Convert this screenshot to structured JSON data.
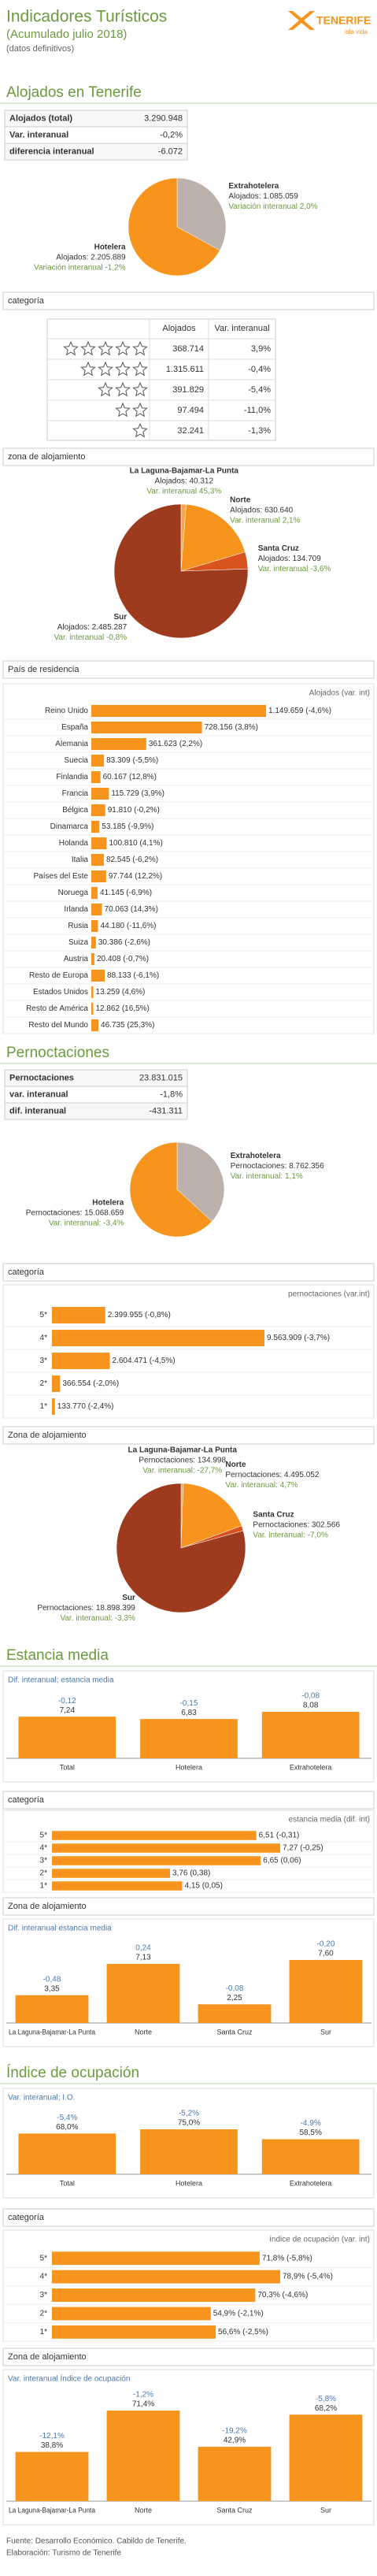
{
  "header": {
    "title": "Indicadores Turísticos",
    "subtitle": "(Acumulado julio 2018)",
    "note": "(datos definitivos)",
    "logo": "TENERIFE",
    "logo_tagline": "isla vida"
  },
  "chart_data": [
    {
      "type": "table",
      "section": "Alojados en Tenerife",
      "rows": [
        [
          "Alojados (total)",
          "3.290.948"
        ],
        [
          "Var. interanual",
          "-0,2%"
        ],
        [
          "diferencia interanual",
          "-6.072"
        ]
      ]
    },
    {
      "type": "pie",
      "categories": [
        "Extrahotelera",
        "Hotelera"
      ],
      "values": [
        1085059,
        2205889
      ],
      "value_labels": [
        "Alojados: 1.085.059",
        "Alojados: 2.205.889"
      ],
      "var_labels": [
        "Variación interanual 2,0%",
        "Variación interanual -1,2%"
      ],
      "colors": [
        "#bcb1ab",
        "#f7941d"
      ]
    },
    {
      "type": "table",
      "title": "categoría",
      "columns": [
        "Alojados",
        "Var. interanual"
      ],
      "stars": [
        5,
        4,
        3,
        2,
        1
      ],
      "rows": [
        [
          "368.714",
          "3,9%"
        ],
        [
          "1.315.611",
          "-0,4%"
        ],
        [
          "391.829",
          "-5,4%"
        ],
        [
          "97.494",
          "-11,0%"
        ],
        [
          "32.241",
          "-1,3%"
        ]
      ]
    },
    {
      "type": "pie",
      "title": "zona de alojamiento",
      "categories": [
        "La Laguna-Bajamar-La Punta",
        "Norte",
        "Santa Cruz",
        "Sur"
      ],
      "values": [
        40312,
        630640,
        134709,
        2485287
      ],
      "value_labels": [
        "Alojados: 40.312",
        "Alojados: 630.640",
        "Alojados: 134.709",
        "Alojados: 2.485.287"
      ],
      "var_labels": [
        "Var. interanual 45,3%",
        "Var. interanual 2,1%",
        "Var. interanual -3,6%",
        "Var. interanual -0,8%"
      ],
      "colors": [
        "#f6a54e",
        "#f7941d",
        "#d9531e",
        "#9e3b1f"
      ]
    },
    {
      "type": "hbar",
      "title": "País de residencia",
      "axis_label": "Alojados (var. int)",
      "color": "#f7941d",
      "categories": [
        "Reino Unido",
        "España",
        "Alemania",
        "Suecia",
        "Finlandia",
        "Francia",
        "Bélgica",
        "Dinamarca",
        "Holanda",
        "Italia",
        "Países del Este",
        "Noruega",
        "Irlanda",
        "Rusia",
        "Suiza",
        "Austria",
        "Resto de Europa",
        "Estados Unidos",
        "Resto de América",
        "Resto del Mundo"
      ],
      "values": [
        1149659,
        728156,
        361623,
        83309,
        60167,
        115729,
        91810,
        53185,
        100810,
        82545,
        97744,
        41145,
        70063,
        44180,
        30386,
        20408,
        88133,
        13259,
        12862,
        46735
      ],
      "value_labels": [
        "1.149.659 (-4,6%)",
        "728.156 (3,8%)",
        "361.623 (2,2%)",
        "83.309 (-5,5%)",
        "60.167 (12,8%)",
        "115.729 (3,9%)",
        "91.810 (-0,2%)",
        "53.185 (-9,9%)",
        "100.810 (4,1%)",
        "82.545 (-6,2%)",
        "97.744 (12,2%)",
        "41.145 (-6,9%)",
        "70.063 (14,3%)",
        "44.180 (-11,6%)",
        "30.386 (-2,6%)",
        "20.408 (-0,7%)",
        "88.133 (-6,1%)",
        "13.259 (4,6%)",
        "12.862 (16,5%)",
        "46.735 (25,3%)"
      ]
    },
    {
      "type": "table",
      "section": "Pernoctaciones",
      "rows": [
        [
          "Pernoctaciones",
          "23.831.015"
        ],
        [
          "var. interanual",
          "-1,8%"
        ],
        [
          "dif. interanual",
          "-431.311"
        ]
      ]
    },
    {
      "type": "pie",
      "categories": [
        "Extrahotelera",
        "Hotelera"
      ],
      "values": [
        8762356,
        15068659
      ],
      "value_labels": [
        "Pernoctaciones: 8.762.356",
        "Pernoctaciones: 15.068.659"
      ],
      "var_labels": [
        "Var. interanual: 1,1%",
        "Var. interanual: -3,4%"
      ],
      "colors": [
        "#bcb1ab",
        "#f7941d"
      ]
    },
    {
      "type": "hbar",
      "title": "categoría",
      "axis_label": "pernoctaciones (var.int)",
      "color": "#f7941d",
      "categories": [
        "5*",
        "4*",
        "3*",
        "2*",
        "1*"
      ],
      "values": [
        2399955,
        9563909,
        2604471,
        366554,
        133770
      ],
      "value_labels": [
        "2.399.955 (-0,8%)",
        "9.563.909 (-3,7%)",
        "2.604.471 (-4,5%)",
        "366.554 (-2,0%)",
        "133.770 (-2,4%)"
      ]
    },
    {
      "type": "pie",
      "title": "Zona de alojamiento",
      "categories": [
        "La Laguna-Bajamar-La Punta",
        "Norte",
        "Santa Cruz",
        "Sur"
      ],
      "values": [
        134998,
        4495052,
        302566,
        18898399
      ],
      "value_labels": [
        "Pernoctaciones: 134.998",
        "Pernoctaciones: 4.495.052",
        "Pernoctaciones: 302.566",
        "Pernoctaciones: 18.898.399"
      ],
      "var_labels": [
        "Var. interanual: -27,7%",
        "Var. interanual: 4,7%",
        "Var. interanual: -7,0%",
        "Var. interanual: -3,3%"
      ],
      "colors": [
        "#f6a54e",
        "#f7941d",
        "#d9531e",
        "#9e3b1f"
      ]
    },
    {
      "type": "vbar",
      "section": "Estancia media",
      "legend_label": "Dif. interanual; estancia media",
      "color": "#f7941d",
      "categories": [
        "Total",
        "Hotelera",
        "Extrahotelera"
      ],
      "values": [
        7.24,
        6.83,
        8.08
      ],
      "value_labels": [
        "7,24",
        "6,83",
        "8,08"
      ],
      "var_labels": [
        "-0,12",
        "-0,15",
        "-0,08"
      ]
    },
    {
      "type": "hbar",
      "title": "categoría",
      "axis_label": "estancia media (dif. int)",
      "color": "#f7941d",
      "categories": [
        "5*",
        "4*",
        "3*",
        "2*",
        "1*"
      ],
      "values": [
        6.51,
        7.27,
        6.65,
        3.76,
        4.15
      ],
      "value_labels": [
        "6,51 (-0,31)",
        "7,27 (-0,25)",
        "6,65 (0,06)",
        "3,76 (0,38)",
        "4,15 (0,05)"
      ]
    },
    {
      "type": "vbar",
      "title": "Zona de alojamiento",
      "legend_label": "Dif. interanual estancia media",
      "color": "#f7941d",
      "categories": [
        "La Laguna-Bajamar-La Punta",
        "Norte",
        "Santa Cruz",
        "Sur"
      ],
      "values": [
        3.35,
        7.13,
        2.25,
        7.6
      ],
      "value_labels": [
        "3,35",
        "7,13",
        "2,25",
        "7,60"
      ],
      "var_labels": [
        "-0,48",
        "0,24",
        "-0,08",
        "-0,20"
      ]
    },
    {
      "type": "vbar",
      "section": "Índice de ocupación",
      "legend_label": "Var. interanual; I.O.",
      "color": "#f7941d",
      "categories": [
        "Total",
        "Hotelera",
        "Extrahotelera"
      ],
      "values": [
        68.0,
        75.0,
        58.5
      ],
      "value_labels": [
        "68,0%",
        "75,0%",
        "58,5%"
      ],
      "var_labels": [
        "-5,4%",
        "-5,2%",
        "-4,9%"
      ]
    },
    {
      "type": "hbar",
      "title": "categoría",
      "axis_label": "índice de ocupación (var. int)",
      "color": "#f7941d",
      "categories": [
        "5*",
        "4*",
        "3*",
        "2*",
        "1*"
      ],
      "values": [
        71.8,
        78.9,
        70.3,
        54.9,
        56.6
      ],
      "value_labels": [
        "71,8% (-5,8%)",
        "78,9% (-5,4%)",
        "70,3% (-4,6%)",
        "54,9% (-2,1%)",
        "56,6% (-2,5%)"
      ]
    },
    {
      "type": "vbar",
      "title": "Zona de alojamiento",
      "legend_label": "Var. interanual Índice de ocupación",
      "color": "#f7941d",
      "categories": [
        "La Laguna-Bajamar-La Punta",
        "Norte",
        "Santa Cruz",
        "Sur"
      ],
      "values": [
        38.8,
        71.4,
        42.9,
        68.2
      ],
      "value_labels": [
        "38,8%",
        "71,4%",
        "42,9%",
        "68,2%"
      ],
      "var_labels": [
        "-12,1%",
        "-1,2%",
        "-19,2%",
        "-5,8%"
      ]
    }
  ],
  "footer": {
    "source": "Fuente: Desarrollo Económico. Cabildo de Tenerife.",
    "credit": "Elaboración: Turismo de Tenerife"
  }
}
